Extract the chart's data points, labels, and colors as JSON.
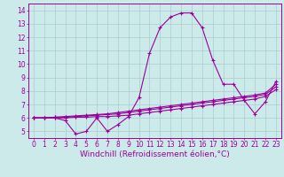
{
  "x": [
    0,
    1,
    2,
    3,
    4,
    5,
    6,
    7,
    8,
    9,
    10,
    11,
    12,
    13,
    14,
    15,
    16,
    17,
    18,
    19,
    20,
    21,
    22,
    23
  ],
  "line1": [
    6.0,
    6.0,
    6.0,
    5.8,
    4.8,
    5.0,
    6.0,
    5.0,
    5.5,
    6.1,
    7.5,
    10.8,
    12.7,
    13.5,
    13.8,
    13.8,
    12.7,
    10.3,
    8.5,
    8.5,
    7.3,
    6.3,
    7.2,
    8.7
  ],
  "line2": [
    6.0,
    6.0,
    6.05,
    6.1,
    6.15,
    6.2,
    6.25,
    6.3,
    6.4,
    6.5,
    6.6,
    6.7,
    6.8,
    6.9,
    7.0,
    7.1,
    7.2,
    7.3,
    7.4,
    7.5,
    7.6,
    7.7,
    7.85,
    8.5
  ],
  "line3": [
    6.0,
    6.0,
    6.05,
    6.05,
    6.1,
    6.15,
    6.2,
    6.25,
    6.3,
    6.4,
    6.5,
    6.6,
    6.7,
    6.8,
    6.9,
    7.0,
    7.1,
    7.2,
    7.3,
    7.4,
    7.5,
    7.6,
    7.75,
    8.3
  ],
  "line4": [
    6.0,
    6.0,
    6.0,
    6.0,
    6.05,
    6.05,
    6.1,
    6.1,
    6.15,
    6.2,
    6.3,
    6.4,
    6.5,
    6.6,
    6.7,
    6.8,
    6.9,
    7.0,
    7.1,
    7.2,
    7.3,
    7.4,
    7.6,
    8.1
  ],
  "line_color": "#990099",
  "bg_color": "#cceaea",
  "grid_color": "#aacccc",
  "xlabel": "Windchill (Refroidissement éolien,°C)",
  "xlim": [
    -0.5,
    23.5
  ],
  "ylim": [
    4.5,
    14.5
  ],
  "yticks": [
    5,
    6,
    7,
    8,
    9,
    10,
    11,
    12,
    13,
    14
  ],
  "xticks": [
    0,
    1,
    2,
    3,
    4,
    5,
    6,
    7,
    8,
    9,
    10,
    11,
    12,
    13,
    14,
    15,
    16,
    17,
    18,
    19,
    20,
    21,
    22,
    23
  ],
  "marker": "+",
  "markersize": 3,
  "linewidth": 0.8,
  "xlabel_fontsize": 6.5,
  "tick_fontsize": 5.5
}
